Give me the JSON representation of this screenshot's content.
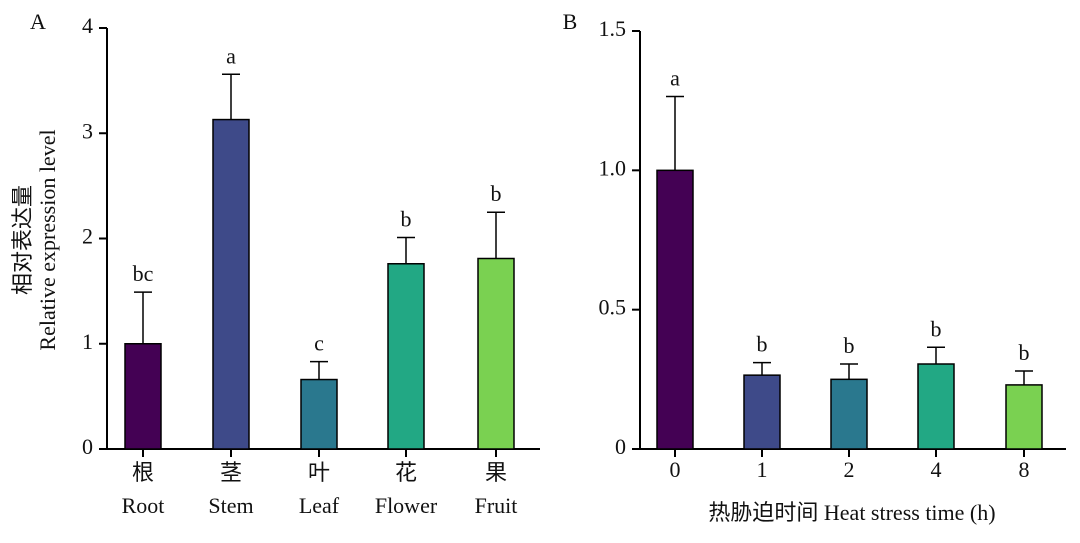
{
  "chart_data": [
    {
      "type": "bar",
      "panel_label": "A",
      "ylabel": [
        "相对表达量",
        "Relative expression level"
      ],
      "categories": [
        "根",
        "茎",
        "叶",
        "花",
        "果"
      ],
      "categories_en": [
        "Root",
        "Stem",
        "Leaf",
        "Flower",
        "Fruit"
      ],
      "values": [
        1.0,
        3.13,
        0.66,
        1.76,
        1.81
      ],
      "errors": [
        0.49,
        0.43,
        0.17,
        0.25,
        0.44
      ],
      "annotations": [
        "bc",
        "a",
        "c",
        "b",
        "b"
      ],
      "colors": [
        "#440154",
        "#3e4a89",
        "#2a788e",
        "#22a884",
        "#7ad151"
      ],
      "ylim": [
        0,
        4
      ],
      "yticks": [
        0,
        1,
        2,
        3,
        4
      ]
    },
    {
      "type": "bar",
      "panel_label": "B",
      "xlabel": "热胁迫时间 Heat stress time (h)",
      "categories": [
        "0",
        "1",
        "2",
        "4",
        "8"
      ],
      "values": [
        1.0,
        0.265,
        0.25,
        0.305,
        0.23
      ],
      "errors": [
        0.265,
        0.045,
        0.055,
        0.06,
        0.05
      ],
      "annotations": [
        "a",
        "b",
        "b",
        "b",
        "b"
      ],
      "colors": [
        "#440154",
        "#3e4a89",
        "#2a788e",
        "#22a884",
        "#7ad151"
      ],
      "ylim": [
        0,
        1.5
      ],
      "yticks": [
        0,
        0.5,
        {
          "value": 1,
          "label": "1.0"
        },
        1.5
      ]
    }
  ]
}
